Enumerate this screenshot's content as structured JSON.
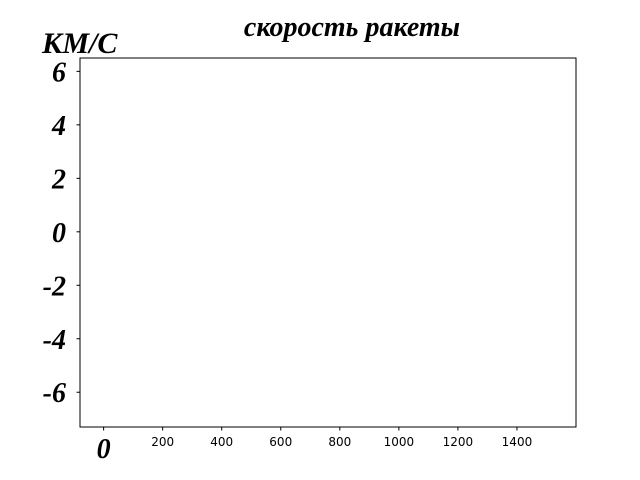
{
  "chart_data": {
    "type": "line",
    "title": "скорость ракеты",
    "ylabel": "КМ/С",
    "xlabel": "",
    "xlim": [
      -80,
      1600
    ],
    "ylim": [
      -7.3,
      6.5
    ],
    "x_ticks": [
      {
        "value": 0,
        "label": "0"
      },
      {
        "value": 200,
        "label": "200"
      },
      {
        "value": 400,
        "label": "400"
      },
      {
        "value": 600,
        "label": "600"
      },
      {
        "value": 800,
        "label": "800"
      },
      {
        "value": 1000,
        "label": "1000"
      },
      {
        "value": 1200,
        "label": "1200"
      },
      {
        "value": 1400,
        "label": "1400"
      }
    ],
    "y_ticks": [
      {
        "value": 6,
        "label": "6"
      },
      {
        "value": 4,
        "label": "4"
      },
      {
        "value": 2,
        "label": "2"
      },
      {
        "value": 0,
        "label": "0"
      },
      {
        "value": -2,
        "label": "-2"
      },
      {
        "value": -4,
        "label": "-4"
      },
      {
        "value": -6,
        "label": "-6"
      }
    ],
    "series": [],
    "grid": false,
    "legend": "none"
  }
}
